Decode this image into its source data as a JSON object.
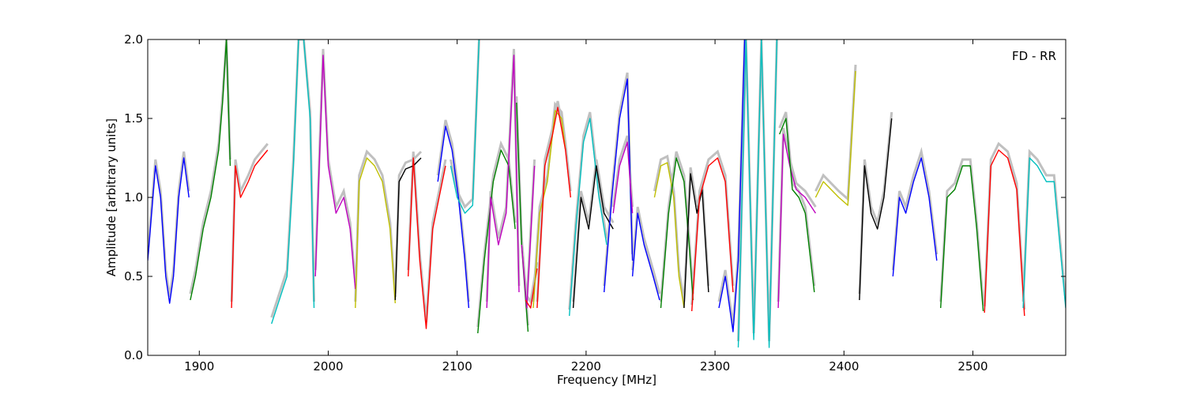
{
  "chart_data": {
    "type": "line",
    "title": "",
    "annotation": "FD - RR",
    "xlabel": "Frequency [MHz]",
    "ylabel": "Amplitude [arbitrary units]",
    "xlim": [
      1860,
      2572
    ],
    "ylim": [
      0.0,
      2.0
    ],
    "xticks": [
      1900,
      2000,
      2100,
      2200,
      2300,
      2400,
      2500
    ],
    "yticks": [
      0.0,
      0.5,
      1.0,
      1.5,
      2.0
    ],
    "xtick_labels": [
      "1900",
      "2000",
      "2100",
      "2200",
      "2300",
      "2400",
      "2500"
    ],
    "ytick_labels": [
      "0.0",
      "0.5",
      "1.0",
      "1.5",
      "2.0"
    ],
    "grid": false,
    "background_color": "#c0c0c0",
    "segments": [
      {
        "color": "#0000ff",
        "x": [
          1860,
          1866,
          1870,
          1874,
          1877,
          1880,
          1884,
          1888,
          1892
        ],
        "y": [
          0.6,
          1.2,
          1.0,
          0.5,
          0.33,
          0.5,
          1.0,
          1.25,
          1.0
        ]
      },
      {
        "color": "#008000",
        "x": [
          1893,
          1897,
          1903,
          1909,
          1915,
          1918,
          1921,
          1924
        ],
        "y": [
          0.35,
          0.5,
          0.8,
          1.0,
          1.3,
          1.6,
          2.0,
          1.2
        ]
      },
      {
        "color": "#ff0000",
        "x": [
          1925,
          1928,
          1932,
          1938,
          1943,
          1948,
          1953
        ],
        "y": [
          0.3,
          1.2,
          1.0,
          1.1,
          1.2,
          1.25,
          1.3
        ]
      },
      {
        "color": "#00bfbf",
        "x": [
          1956,
          1962,
          1968,
          1973,
          1977,
          1981,
          1986,
          1989
        ],
        "y": [
          0.2,
          0.35,
          0.5,
          1.2,
          2.0,
          2.0,
          1.5,
          0.3
        ]
      },
      {
        "color": "#bf00bf",
        "x": [
          1990,
          1996,
          2000,
          2006,
          2012,
          2017,
          2021
        ],
        "y": [
          0.5,
          1.9,
          1.2,
          0.9,
          1.0,
          0.8,
          0.42
        ]
      },
      {
        "color": "#bfbf00",
        "x": [
          2021,
          2024,
          2030,
          2036,
          2042,
          2048,
          2052
        ],
        "y": [
          0.3,
          1.1,
          1.25,
          1.2,
          1.1,
          0.8,
          0.33
        ]
      },
      {
        "color": "#000000",
        "x": [
          2052,
          2055,
          2060,
          2066,
          2072
        ],
        "y": [
          0.35,
          1.1,
          1.18,
          1.2,
          1.25
        ]
      },
      {
        "color": "#ff0000",
        "x": [
          2062,
          2066,
          2071,
          2076,
          2081,
          2086,
          2091
        ],
        "y": [
          0.5,
          1.25,
          0.6,
          0.17,
          0.8,
          1.0,
          1.2
        ]
      },
      {
        "color": "#0000ff",
        "x": [
          2085,
          2091,
          2096,
          2101,
          2106,
          2109
        ],
        "y": [
          1.1,
          1.45,
          1.3,
          1.0,
          0.6,
          0.3
        ]
      },
      {
        "color": "#00bfbf",
        "x": [
          2095,
          2100,
          2106,
          2112,
          2117
        ],
        "y": [
          1.2,
          1.0,
          0.9,
          0.95,
          2.0
        ]
      },
      {
        "color": "#008000",
        "x": [
          2116,
          2121,
          2128,
          2134,
          2140,
          2145
        ],
        "y": [
          0.14,
          0.6,
          1.1,
          1.3,
          1.2,
          0.8
        ]
      },
      {
        "color": "#bf00bf",
        "x": [
          2123,
          2126,
          2132,
          2138,
          2144,
          2148
        ],
        "y": [
          0.3,
          1.0,
          0.7,
          0.9,
          1.9,
          0.4
        ]
      },
      {
        "color": "#008000",
        "x": [
          2146,
          2150,
          2155
        ],
        "y": [
          1.6,
          0.7,
          0.15
        ]
      },
      {
        "color": "#bf00bf",
        "x": [
          2150,
          2154,
          2160
        ],
        "y": [
          0.7,
          0.3,
          1.2
        ]
      },
      {
        "color": "#ff0000",
        "x": [
          2153,
          2157,
          2162
        ],
        "y": [
          0.35,
          0.3,
          0.55
        ]
      },
      {
        "color": "#bfbf00",
        "x": [
          2159,
          2164,
          2170,
          2176,
          2181,
          2184
        ],
        "y": [
          0.3,
          0.9,
          1.1,
          1.55,
          1.5,
          1.3
        ]
      },
      {
        "color": "#ff0000",
        "x": [
          2162,
          2168,
          2174,
          2178,
          2184,
          2188
        ],
        "y": [
          0.3,
          1.2,
          1.4,
          1.57,
          1.3,
          1.0
        ]
      },
      {
        "color": "#00bfbf",
        "x": [
          2187,
          2192,
          2198,
          2203,
          2210,
          2216
        ],
        "y": [
          0.25,
          0.8,
          1.35,
          1.5,
          1.0,
          0.7
        ]
      },
      {
        "color": "#000000",
        "x": [
          2190,
          2196,
          2202,
          2208,
          2214,
          2221
        ],
        "y": [
          0.3,
          1.0,
          0.8,
          1.2,
          0.9,
          0.8
        ]
      },
      {
        "color": "#0000ff",
        "x": [
          2214,
          2220,
          2226,
          2232,
          2236
        ],
        "y": [
          0.4,
          1.0,
          1.5,
          1.75,
          0.6
        ]
      },
      {
        "color": "#bf00bf",
        "x": [
          2221,
          2226,
          2232,
          2236
        ],
        "y": [
          0.9,
          1.2,
          1.35,
          0.9
        ]
      },
      {
        "color": "#0000ff",
        "x": [
          2236,
          2240,
          2245,
          2252,
          2257
        ],
        "y": [
          0.5,
          0.9,
          0.7,
          0.5,
          0.35
        ]
      },
      {
        "color": "#bfbf00",
        "x": [
          2253,
          2258,
          2263,
          2268,
          2272,
          2276
        ],
        "y": [
          1.0,
          1.2,
          1.22,
          1.0,
          0.5,
          0.3
        ]
      },
      {
        "color": "#008000",
        "x": [
          2258,
          2264,
          2270,
          2276,
          2280,
          2283
        ],
        "y": [
          0.3,
          0.9,
          1.25,
          1.1,
          0.7,
          0.35
        ]
      },
      {
        "color": "#000000",
        "x": [
          2276,
          2281,
          2286,
          2290,
          2295
        ],
        "y": [
          0.3,
          1.15,
          0.9,
          1.05,
          0.4
        ]
      },
      {
        "color": "#ff0000",
        "x": [
          2282,
          2288,
          2295,
          2302,
          2308,
          2314
        ],
        "y": [
          0.28,
          1.0,
          1.2,
          1.25,
          1.1,
          0.4
        ]
      },
      {
        "color": "#0000ff",
        "x": [
          2303,
          2308,
          2314,
          2318,
          2323
        ],
        "y": [
          0.3,
          0.5,
          0.15,
          0.6,
          2.0
        ]
      },
      {
        "color": "#00bfbf",
        "x": [
          2318,
          2324,
          2330,
          2336,
          2342,
          2348
        ],
        "y": [
          0.05,
          2.0,
          0.1,
          2.0,
          0.05,
          2.0
        ]
      },
      {
        "color": "#bf00bf",
        "x": [
          2349,
          2353,
          2358,
          2363,
          2370,
          2378
        ],
        "y": [
          0.3,
          1.4,
          1.2,
          1.05,
          1.0,
          0.9
        ]
      },
      {
        "color": "#008000",
        "x": [
          2350,
          2355,
          2360,
          2365,
          2370,
          2377
        ],
        "y": [
          1.4,
          1.5,
          1.05,
          1.0,
          0.9,
          0.4
        ]
      },
      {
        "color": "#bfbf00",
        "x": [
          2378,
          2384,
          2390,
          2396,
          2403,
          2409
        ],
        "y": [
          1.0,
          1.1,
          1.05,
          1.0,
          0.95,
          1.8
        ]
      },
      {
        "color": "#000000",
        "x": [
          2412,
          2416,
          2421,
          2426,
          2431,
          2437
        ],
        "y": [
          0.35,
          1.2,
          0.9,
          0.8,
          1.0,
          1.5
        ]
      },
      {
        "color": "#0000ff",
        "x": [
          2438,
          2443,
          2448,
          2454,
          2460,
          2466,
          2472
        ],
        "y": [
          0.5,
          1.0,
          0.9,
          1.1,
          1.25,
          1.0,
          0.6
        ]
      },
      {
        "color": "#008000",
        "x": [
          2475,
          2480,
          2486,
          2492,
          2498,
          2503,
          2508
        ],
        "y": [
          0.3,
          1.0,
          1.05,
          1.2,
          1.2,
          0.8,
          0.28
        ]
      },
      {
        "color": "#ff0000",
        "x": [
          2509,
          2514,
          2520,
          2527,
          2534,
          2540
        ],
        "y": [
          0.27,
          1.2,
          1.3,
          1.25,
          1.05,
          0.25
        ]
      },
      {
        "color": "#00bfbf",
        "x": [
          2539,
          2544,
          2550,
          2557,
          2563,
          2572
        ],
        "y": [
          0.3,
          1.25,
          1.2,
          1.1,
          1.1,
          0.3
        ]
      }
    ]
  }
}
